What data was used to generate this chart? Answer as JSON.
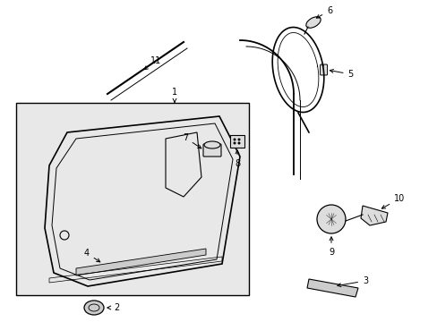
{
  "bg_color": "#ffffff",
  "line_color": "#000000",
  "gray_fill": "#e8e8e8",
  "figsize": [
    4.89,
    3.6
  ],
  "dpi": 100
}
